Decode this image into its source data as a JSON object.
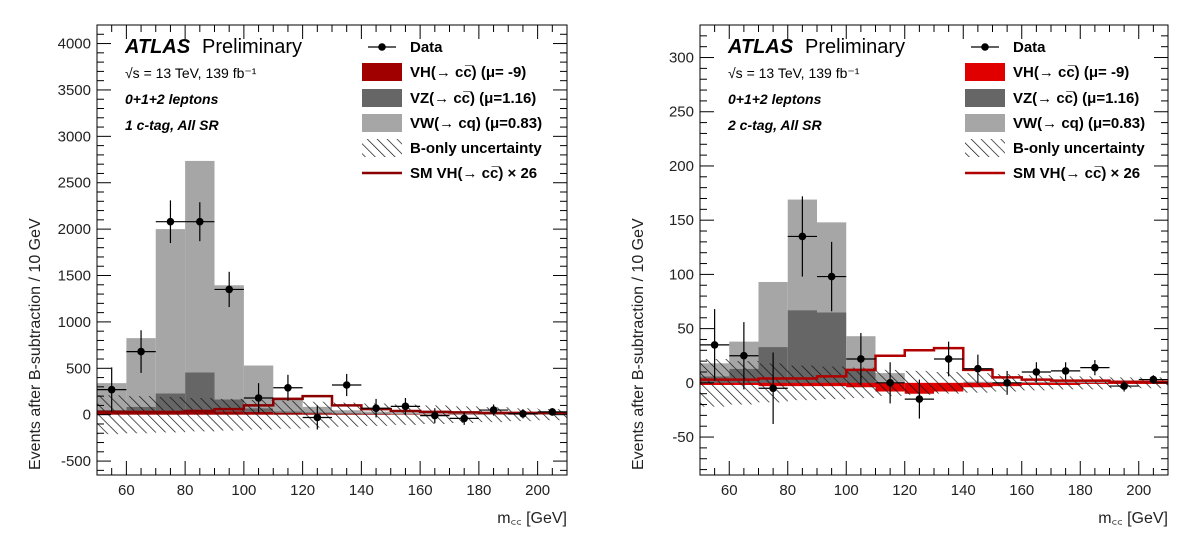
{
  "chart_data": [
    {
      "type": "histogram",
      "panel": "left",
      "atlas_label": "ATLAS",
      "preliminary_label": "Preliminary",
      "energy_label": "√s = 13 TeV, 139 fb⁻¹",
      "leptons_label": "0+1+2 leptons",
      "region_label": "1 c-tag, All SR",
      "ylabel": "Events after B-subtraction / 10 GeV",
      "xlabel": "m꜀꜀ [GeV]",
      "xlim": [
        50,
        210
      ],
      "ylim": [
        -650,
        4200
      ],
      "xticks": [
        60,
        80,
        100,
        120,
        140,
        160,
        180,
        200
      ],
      "yticks": [
        -500,
        0,
        500,
        1000,
        1500,
        2000,
        2500,
        3000,
        3500,
        4000
      ],
      "bin_edges": [
        50,
        60,
        70,
        80,
        90,
        100,
        110,
        120,
        130,
        140,
        150,
        160,
        170,
        180,
        190,
        200,
        210
      ],
      "stack": {
        "vh": [
          20,
          25,
          30,
          35,
          35,
          30,
          20,
          15,
          10,
          8,
          5,
          4,
          3,
          2,
          2,
          2
        ],
        "vz": [
          30,
          60,
          200,
          420,
          130,
          40,
          15,
          10,
          8,
          5,
          4,
          3,
          3,
          2,
          2,
          2
        ],
        "vw": [
          290,
          740,
          1770,
          2280,
          1230,
          460,
          150,
          60,
          30,
          20,
          15,
          10,
          10,
          8,
          8,
          8
        ]
      },
      "sm_vh": [
        30,
        30,
        30,
        40,
        60,
        100,
        170,
        200,
        100,
        60,
        40,
        30,
        25,
        20,
        20,
        20
      ],
      "b_unc_half": [
        210,
        200,
        190,
        180,
        170,
        160,
        150,
        140,
        130,
        120,
        110,
        100,
        90,
        80,
        70,
        60
      ],
      "data": {
        "x": [
          55,
          65,
          75,
          85,
          95,
          105,
          115,
          125,
          135,
          145,
          155,
          165,
          175,
          185,
          195,
          205
        ],
        "y": [
          270,
          680,
          2080,
          2080,
          1350,
          180,
          290,
          -30,
          320,
          70,
          90,
          -10,
          -40,
          50,
          10,
          30
        ],
        "err": [
          240,
          230,
          230,
          210,
          190,
          160,
          140,
          130,
          120,
          100,
          90,
          80,
          70,
          60,
          50,
          40
        ]
      },
      "legend": [
        "Data",
        "VH(→ cc̅) (μ= -9)",
        "VZ(→ cc̅) (μ=1.16)",
        "VW(→ cq) (μ=0.83)",
        "B-only uncertainty",
        "SM VH(→ cc̅) × 26"
      ],
      "colors": {
        "vh": "#a00000",
        "vz": "#666666",
        "vw": "#a6a6a6",
        "sm": "#8b0000",
        "data": "#000000"
      }
    },
    {
      "type": "histogram",
      "panel": "right",
      "atlas_label": "ATLAS",
      "preliminary_label": "Preliminary",
      "energy_label": "√s = 13 TeV, 139 fb⁻¹",
      "leptons_label": "0+1+2 leptons",
      "region_label": "2 c-tag, All SR",
      "ylabel": "Events after B-subtraction / 10 GeV",
      "xlabel": "m꜀꜀ [GeV]",
      "xlim": [
        50,
        210
      ],
      "ylim": [
        -85,
        330
      ],
      "xticks": [
        60,
        80,
        100,
        120,
        140,
        160,
        180,
        200
      ],
      "yticks": [
        -50,
        0,
        50,
        100,
        150,
        200,
        250,
        300
      ],
      "bin_edges": [
        50,
        60,
        70,
        80,
        90,
        100,
        110,
        120,
        130,
        140,
        150,
        160,
        170,
        180,
        190,
        200,
        210
      ],
      "stack": {
        "vh": [
          -2,
          -2,
          -3,
          -3,
          -3,
          -4,
          -8,
          -10,
          -8,
          -4,
          -3,
          -2,
          -2,
          -1,
          -1,
          -1
        ],
        "vz": [
          8,
          15,
          36,
          70,
          68,
          15,
          5,
          3,
          2,
          2,
          1,
          1,
          1,
          1,
          1,
          1
        ],
        "vw": [
          12,
          25,
          60,
          102,
          83,
          32,
          12,
          6,
          4,
          3,
          2,
          2,
          2,
          2,
          2,
          2
        ]
      },
      "sm_vh": [
        3,
        3,
        4,
        4,
        6,
        12,
        25,
        30,
        32,
        12,
        5,
        3,
        2,
        2,
        1,
        1
      ],
      "b_unc_half": [
        22,
        20,
        18,
        16,
        15,
        14,
        12,
        11,
        10,
        9,
        8,
        7,
        6,
        6,
        5,
        5
      ],
      "data": {
        "x": [
          55,
          65,
          75,
          85,
          95,
          105,
          115,
          125,
          135,
          145,
          155,
          165,
          175,
          185,
          195,
          205
        ],
        "y": [
          35,
          25,
          -5,
          135,
          98,
          22,
          0,
          -15,
          22,
          13,
          0,
          10,
          11,
          14,
          -3,
          3
        ],
        "err": [
          33,
          31,
          33,
          37,
          32,
          24,
          19,
          18,
          16,
          13,
          11,
          9,
          8,
          7,
          5,
          4
        ]
      },
      "legend": [
        "Data",
        "VH(→ cc̅) (μ= -9)",
        "VZ(→ cc̅) (μ=1.16)",
        "VW(→ cq) (μ=0.83)",
        "B-only uncertainty",
        "SM VH(→ cc̅) × 26"
      ],
      "colors": {
        "vh": "#e00000",
        "vz": "#666666",
        "vw": "#a6a6a6",
        "sm": "#b00000",
        "data": "#000000"
      }
    }
  ]
}
